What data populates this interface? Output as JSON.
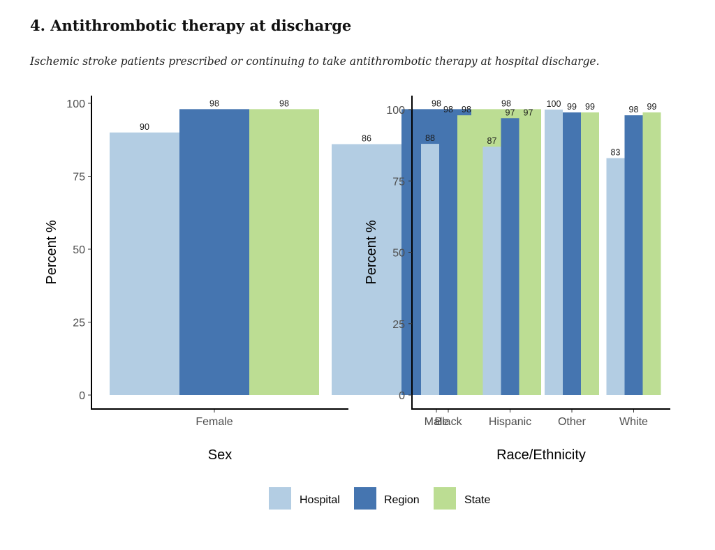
{
  "page": {
    "title": "4.  Antithrombotic therapy at discharge",
    "subtitle": "Ischemic stroke patients prescribed or continuing to take antithrombotic therapy at hospital discharge."
  },
  "chart_data": [
    {
      "type": "bar",
      "title": "",
      "xlabel": "Sex",
      "ylabel": "Percent %",
      "ylim": [
        0,
        100
      ],
      "yticks": [
        0,
        25,
        50,
        75,
        100
      ],
      "grid": false,
      "categories": [
        "Female",
        "Male"
      ],
      "series": [
        {
          "name": "Hospital",
          "color": "#b3cde3",
          "values": [
            90,
            86
          ]
        },
        {
          "name": "Region",
          "color": "#4575b0",
          "values": [
            98,
            98
          ]
        },
        {
          "name": "State",
          "color": "#bcdd93",
          "values": [
            98,
            98
          ]
        }
      ]
    },
    {
      "type": "bar",
      "title": "",
      "xlabel": "Race/Ethnicity",
      "ylabel": "Percent %",
      "ylim": [
        0,
        100
      ],
      "yticks": [
        0,
        25,
        50,
        75,
        100
      ],
      "grid": false,
      "categories": [
        "Black",
        "Hispanic",
        "Other",
        "White"
      ],
      "series": [
        {
          "name": "Hospital",
          "color": "#b3cde3",
          "values": [
            88,
            87,
            100,
            83
          ]
        },
        {
          "name": "Region",
          "color": "#4575b0",
          "values": [
            98,
            97,
            99,
            98
          ]
        },
        {
          "name": "State",
          "color": "#bcdd93",
          "values": [
            98,
            97,
            99,
            99
          ]
        }
      ]
    }
  ],
  "legend": {
    "position": "bottom",
    "items": [
      {
        "label": "Hospital",
        "color": "#b3cde3"
      },
      {
        "label": "Region",
        "color": "#4575b0"
      },
      {
        "label": "State",
        "color": "#bcdd93"
      }
    ]
  }
}
